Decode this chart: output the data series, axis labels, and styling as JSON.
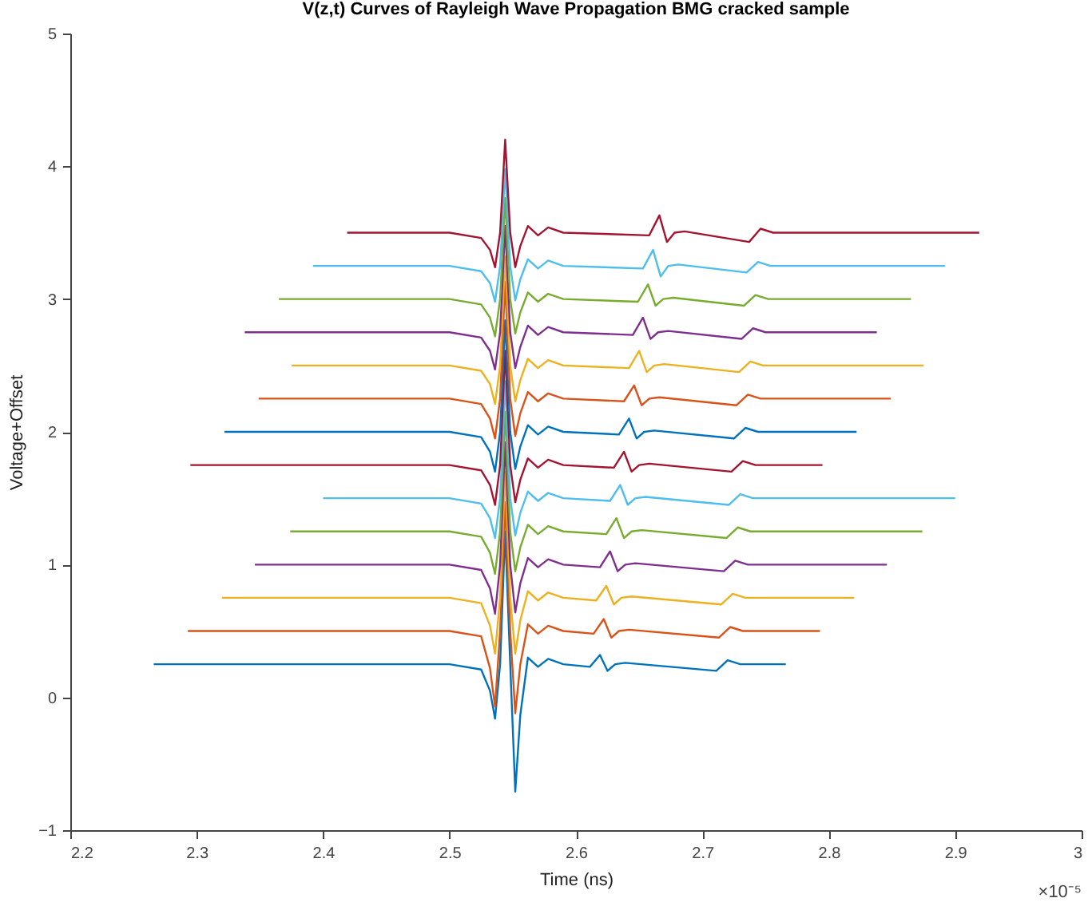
{
  "chart_data": {
    "type": "line",
    "title": "V(z,t) Curves of Rayleigh Wave Propagation BMG cracked sample",
    "xlabel": "Time (ns)",
    "ylabel": "Voltage+Offset",
    "annotations": [
      "×10⁻⁵"
    ],
    "xlim": [
      2.2,
      3
    ],
    "xticks": [
      2.2,
      2.3,
      2.4,
      2.5,
      2.6,
      2.7,
      2.8,
      2.9,
      3
    ],
    "ylim": [
      -1,
      5
    ],
    "yticks": [
      -1,
      0,
      1,
      2,
      3,
      4,
      5
    ],
    "grid": false,
    "legend": false,
    "marker": "none",
    "line_style": "solid",
    "series": [
      {
        "color": "#0072bd",
        "x": [
          2.266,
          2.5,
          2.525,
          2.532,
          2.536,
          2.54,
          2.544,
          2.548,
          2.552,
          2.556,
          2.562,
          2.57,
          2.578,
          2.59,
          2.611,
          2.619,
          2.625,
          2.631,
          2.639,
          2.711,
          2.72,
          2.73,
          2.766
        ],
        "values": [
          0.25,
          0.25,
          0.21,
          0.05,
          -0.16,
          0.25,
          1.25,
          0.25,
          -0.71,
          -0.13,
          0.3,
          0.23,
          0.29,
          0.25,
          0.23,
          0.32,
          0.2,
          0.25,
          0.26,
          0.2,
          0.28,
          0.25,
          0.25
        ]
      },
      {
        "color": "#d95319",
        "x": [
          2.293,
          2.5,
          2.525,
          2.532,
          2.536,
          2.54,
          2.544,
          2.548,
          2.552,
          2.556,
          2.562,
          2.57,
          2.578,
          2.59,
          2.614,
          2.622,
          2.628,
          2.634,
          2.642,
          2.713,
          2.722,
          2.732,
          2.793
        ],
        "values": [
          0.5,
          0.5,
          0.46,
          0.22,
          -0.07,
          0.5,
          1.47,
          0.5,
          -0.12,
          0.25,
          0.55,
          0.48,
          0.54,
          0.5,
          0.48,
          0.59,
          0.45,
          0.5,
          0.51,
          0.45,
          0.53,
          0.5,
          0.5
        ]
      },
      {
        "color": "#edb120",
        "x": [
          2.32,
          2.5,
          2.525,
          2.532,
          2.536,
          2.54,
          2.544,
          2.548,
          2.552,
          2.556,
          2.562,
          2.57,
          2.578,
          2.59,
          2.616,
          2.624,
          2.63,
          2.636,
          2.644,
          2.715,
          2.724,
          2.734,
          2.82
        ],
        "values": [
          0.75,
          0.75,
          0.71,
          0.54,
          0.33,
          0.75,
          1.7,
          0.75,
          0.33,
          0.58,
          0.8,
          0.73,
          0.79,
          0.75,
          0.73,
          0.84,
          0.7,
          0.75,
          0.76,
          0.7,
          0.78,
          0.75,
          0.75
        ]
      },
      {
        "color": "#7e2f8e",
        "x": [
          2.346,
          2.5,
          2.525,
          2.532,
          2.536,
          2.54,
          2.544,
          2.548,
          2.552,
          2.556,
          2.562,
          2.57,
          2.578,
          2.59,
          2.619,
          2.627,
          2.633,
          2.639,
          2.647,
          2.717,
          2.726,
          2.736,
          2.846
        ],
        "values": [
          1,
          1,
          0.96,
          0.82,
          0.63,
          1,
          1.92,
          1,
          0.64,
          0.86,
          1.05,
          0.98,
          1.04,
          1,
          0.98,
          1.1,
          0.95,
          1,
          1.01,
          0.95,
          1.03,
          1,
          1
        ]
      },
      {
        "color": "#77ac30",
        "x": [
          2.374,
          2.5,
          2.525,
          2.532,
          2.536,
          2.54,
          2.544,
          2.548,
          2.552,
          2.556,
          2.562,
          2.57,
          2.578,
          2.59,
          2.624,
          2.632,
          2.638,
          2.644,
          2.652,
          2.719,
          2.728,
          2.738,
          2.874
        ],
        "values": [
          1.25,
          1.25,
          1.21,
          1.09,
          0.93,
          1.25,
          2.15,
          1.25,
          0.95,
          1.13,
          1.3,
          1.23,
          1.29,
          1.25,
          1.23,
          1.35,
          1.2,
          1.25,
          1.26,
          1.2,
          1.28,
          1.25,
          1.25
        ]
      },
      {
        "color": "#4dbeee",
        "x": [
          2.4,
          2.5,
          2.525,
          2.532,
          2.536,
          2.54,
          2.544,
          2.548,
          2.552,
          2.556,
          2.562,
          2.57,
          2.578,
          2.59,
          2.627,
          2.635,
          2.641,
          2.647,
          2.655,
          2.721,
          2.73,
          2.74,
          2.9
        ],
        "values": [
          1.5,
          1.5,
          1.46,
          1.35,
          1.2,
          1.5,
          2.38,
          1.5,
          1.22,
          1.39,
          1.55,
          1.48,
          1.54,
          1.5,
          1.48,
          1.6,
          1.45,
          1.5,
          1.51,
          1.45,
          1.53,
          1.5,
          1.5
        ]
      },
      {
        "color": "#a2142f",
        "x": [
          2.295,
          2.5,
          2.525,
          2.532,
          2.536,
          2.54,
          2.544,
          2.548,
          2.552,
          2.556,
          2.562,
          2.57,
          2.578,
          2.59,
          2.63,
          2.638,
          2.644,
          2.65,
          2.658,
          2.723,
          2.732,
          2.742,
          2.795
        ],
        "values": [
          1.75,
          1.75,
          1.71,
          1.6,
          1.45,
          1.75,
          2.61,
          1.75,
          1.47,
          1.64,
          1.8,
          1.73,
          1.79,
          1.75,
          1.73,
          1.85,
          1.7,
          1.75,
          1.76,
          1.7,
          1.78,
          1.75,
          1.75
        ]
      },
      {
        "color": "#0072bd",
        "x": [
          2.322,
          2.5,
          2.525,
          2.532,
          2.536,
          2.54,
          2.544,
          2.548,
          2.552,
          2.556,
          2.562,
          2.57,
          2.578,
          2.59,
          2.634,
          2.642,
          2.648,
          2.654,
          2.662,
          2.725,
          2.734,
          2.744,
          2.822
        ],
        "values": [
          2,
          2,
          1.96,
          1.85,
          1.7,
          2,
          2.84,
          2,
          1.72,
          1.89,
          2.05,
          1.98,
          2.04,
          2,
          1.98,
          2.1,
          1.95,
          2,
          2.01,
          1.95,
          2.03,
          2,
          2
        ]
      },
      {
        "color": "#d95319",
        "x": [
          2.349,
          2.5,
          2.525,
          2.532,
          2.536,
          2.54,
          2.544,
          2.548,
          2.552,
          2.556,
          2.562,
          2.57,
          2.578,
          2.59,
          2.638,
          2.646,
          2.652,
          2.658,
          2.666,
          2.727,
          2.736,
          2.746,
          2.849
        ],
        "values": [
          2.25,
          2.25,
          2.21,
          2.1,
          1.95,
          2.25,
          3.13,
          2.25,
          1.97,
          2.14,
          2.3,
          2.23,
          2.29,
          2.25,
          2.23,
          2.35,
          2.2,
          2.25,
          2.26,
          2.2,
          2.28,
          2.25,
          2.25
        ]
      },
      {
        "color": "#edb120",
        "x": [
          2.375,
          2.5,
          2.525,
          2.532,
          2.536,
          2.54,
          2.544,
          2.548,
          2.552,
          2.556,
          2.562,
          2.57,
          2.578,
          2.59,
          2.642,
          2.65,
          2.656,
          2.662,
          2.67,
          2.729,
          2.738,
          2.748,
          2.875
        ],
        "values": [
          2.5,
          2.5,
          2.46,
          2.36,
          2.21,
          2.5,
          3.32,
          2.5,
          2.23,
          2.39,
          2.55,
          2.48,
          2.54,
          2.5,
          2.48,
          2.61,
          2.45,
          2.5,
          2.51,
          2.45,
          2.53,
          2.5,
          2.5
        ]
      },
      {
        "color": "#7e2f8e",
        "x": [
          2.338,
          2.5,
          2.525,
          2.532,
          2.536,
          2.54,
          2.544,
          2.548,
          2.552,
          2.556,
          2.562,
          2.57,
          2.578,
          2.59,
          2.645,
          2.653,
          2.659,
          2.665,
          2.673,
          2.731,
          2.74,
          2.75,
          2.838
        ],
        "values": [
          2.75,
          2.75,
          2.71,
          2.61,
          2.47,
          2.75,
          3.55,
          2.75,
          2.48,
          2.64,
          2.8,
          2.73,
          2.79,
          2.75,
          2.73,
          2.86,
          2.7,
          2.75,
          2.76,
          2.7,
          2.78,
          2.75,
          2.75
        ]
      },
      {
        "color": "#77ac30",
        "x": [
          2.365,
          2.5,
          2.525,
          2.532,
          2.536,
          2.54,
          2.544,
          2.548,
          2.552,
          2.556,
          2.562,
          2.57,
          2.578,
          2.59,
          2.649,
          2.657,
          2.663,
          2.669,
          2.677,
          2.733,
          2.742,
          2.752,
          2.865
        ],
        "values": [
          3,
          3,
          2.96,
          2.86,
          2.72,
          3,
          3.76,
          3,
          2.74,
          2.9,
          3.05,
          2.98,
          3.04,
          3,
          2.98,
          3.11,
          2.95,
          3,
          3.01,
          2.95,
          3.03,
          3,
          3
        ]
      },
      {
        "color": "#4dbeee",
        "x": [
          2.392,
          2.5,
          2.525,
          2.532,
          2.536,
          2.54,
          2.544,
          2.548,
          2.552,
          2.556,
          2.562,
          2.57,
          2.578,
          2.59,
          2.653,
          2.661,
          2.667,
          2.673,
          2.681,
          2.735,
          2.744,
          2.754,
          2.892
        ],
        "values": [
          3.25,
          3.25,
          3.21,
          3.12,
          2.98,
          3.25,
          3.98,
          3.25,
          2.99,
          3.15,
          3.3,
          3.23,
          3.29,
          3.25,
          3.23,
          3.37,
          3.17,
          3.25,
          3.26,
          3.2,
          3.28,
          3.25,
          3.25
        ]
      },
      {
        "color": "#a2142f",
        "x": [
          2.419,
          2.5,
          2.525,
          2.532,
          2.536,
          2.54,
          2.544,
          2.548,
          2.552,
          2.556,
          2.562,
          2.57,
          2.578,
          2.59,
          2.658,
          2.666,
          2.672,
          2.678,
          2.686,
          2.737,
          2.746,
          2.756,
          2.919
        ],
        "values": [
          3.5,
          3.5,
          3.46,
          3.37,
          3.24,
          3.5,
          4.2,
          3.5,
          3.24,
          3.4,
          3.55,
          3.48,
          3.54,
          3.5,
          3.48,
          3.63,
          3.43,
          3.5,
          3.51,
          3.43,
          3.53,
          3.5,
          3.5
        ]
      }
    ]
  }
}
